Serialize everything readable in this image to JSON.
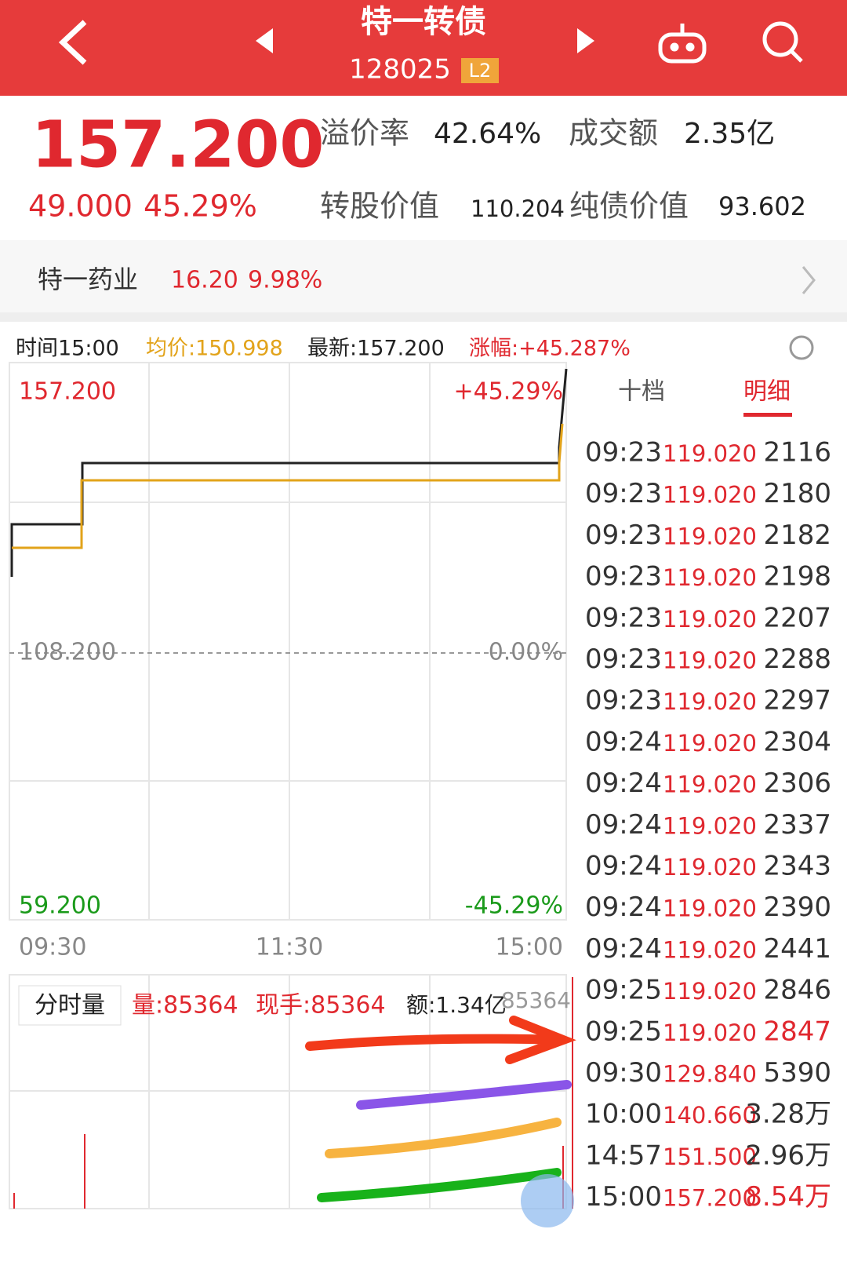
{
  "header": {
    "title": "特一转债",
    "code": "128025",
    "badge": "L2"
  },
  "quote": {
    "price": "157.200",
    "change": "49.000",
    "change_pct": "45.29%",
    "premium_label": "溢价率",
    "premium": "42.64%",
    "turnover_label": "成交额",
    "turnover": "2.35亿",
    "conv_value_label": "转股价值",
    "conv_value": "110.204",
    "bond_value_label": "纯债价值",
    "bond_value": "93.602"
  },
  "stock": {
    "name": "特一药业",
    "price": "16.20",
    "change_pct": "9.98%"
  },
  "info": {
    "time": "时间15:00",
    "avg": "均价:150.998",
    "last": "最新:157.200",
    "change": "涨幅:+45.287%"
  },
  "chart": {
    "y_left": [
      "157.200",
      "108.200",
      "59.200"
    ],
    "y_right": [
      "+45.29%",
      "0.00%",
      "-45.29%"
    ],
    "x_labels": [
      "09:30",
      "11:30",
      "15:00"
    ]
  },
  "volume": {
    "tab": "分时量",
    "volume": "量:85364",
    "current": "现手:85364",
    "amount": "额:1.34亿",
    "max": "85364"
  },
  "tabs": [
    "十档",
    "明细"
  ],
  "trades": [
    {
      "time": "09:23",
      "price": "119.020",
      "volume": "2116"
    },
    {
      "time": "09:23",
      "price": "119.020",
      "volume": "2180"
    },
    {
      "time": "09:23",
      "price": "119.020",
      "volume": "2182"
    },
    {
      "time": "09:23",
      "price": "119.020",
      "volume": "2198"
    },
    {
      "time": "09:23",
      "price": "119.020",
      "volume": "2207"
    },
    {
      "time": "09:23",
      "price": "119.020",
      "volume": "2288"
    },
    {
      "time": "09:23",
      "price": "119.020",
      "volume": "2297"
    },
    {
      "time": "09:24",
      "price": "119.020",
      "volume": "2304"
    },
    {
      "time": "09:24",
      "price": "119.020",
      "volume": "2306"
    },
    {
      "time": "09:24",
      "price": "119.020",
      "volume": "2337"
    },
    {
      "time": "09:24",
      "price": "119.020",
      "volume": "2343"
    },
    {
      "time": "09:24",
      "price": "119.020",
      "volume": "2390"
    },
    {
      "time": "09:24",
      "price": "119.020",
      "volume": "2441"
    },
    {
      "time": "09:25",
      "price": "119.020",
      "volume": "2846"
    },
    {
      "time": "09:25",
      "price": "119.020",
      "volume": "2847",
      "color": "#e0282f"
    },
    {
      "time": "09:30",
      "price": "129.840",
      "volume": "5390"
    },
    {
      "time": "10:00",
      "price": "140.660",
      "volume": "3.28万"
    },
    {
      "time": "14:57",
      "price": "151.500",
      "volume": "2.96万"
    },
    {
      "time": "15:00",
      "price": "157.200",
      "volume": "8.54万",
      "color": "#e0282f"
    }
  ]
}
